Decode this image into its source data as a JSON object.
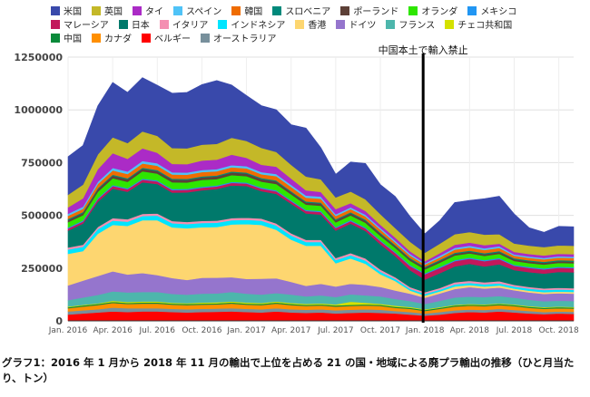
{
  "chart_data": {
    "type": "area",
    "stacked": true,
    "x": [
      "2016-01",
      "2016-02",
      "2016-03",
      "2016-04",
      "2016-05",
      "2016-06",
      "2016-07",
      "2016-08",
      "2016-09",
      "2016-10",
      "2016-11",
      "2016-12",
      "2017-01",
      "2017-02",
      "2017-03",
      "2017-04",
      "2017-05",
      "2017-06",
      "2017-07",
      "2017-08",
      "2017-09",
      "2017-10",
      "2017-11",
      "2017-12",
      "2018-01",
      "2018-02",
      "2018-03",
      "2018-04",
      "2018-05",
      "2018-06",
      "2018-07",
      "2018-08",
      "2018-09",
      "2018-10",
      "2018-11"
    ],
    "x_tick_labels": [
      "Jan. 2016",
      "Apr. 2016",
      "Jul. 2016",
      "Oct. 2016",
      "Jan. 2017",
      "Apr. 2017",
      "Jul. 2017",
      "Oct. 2017",
      "Jan. 2018",
      "Apr. 2018",
      "Jul. 2018",
      "Oct. 2018"
    ],
    "y_tick_labels": [
      "0",
      "250000",
      "500000",
      "750000",
      "1000000",
      "1250000"
    ],
    "ylim": [
      0,
      1250000
    ],
    "legend_position": "top",
    "annotation": {
      "x": "2018-01",
      "label": "中国本土で輸入禁止"
    },
    "series": [
      {
        "name": "ベルギー",
        "color": "#ff0000",
        "values": [
          30000,
          35000,
          40000,
          45000,
          42000,
          45000,
          45000,
          42000,
          40000,
          42000,
          43000,
          45000,
          42000,
          40000,
          45000,
          40000,
          38000,
          40000,
          35000,
          38000,
          40000,
          38000,
          35000,
          30000,
          25000,
          30000,
          38000,
          42000,
          40000,
          45000,
          40000,
          35000,
          32000,
          35000,
          33000
        ]
      },
      {
        "name": "オーストラリア",
        "color": "#78909c",
        "values": [
          15000,
          15000,
          15000,
          18000,
          18000,
          15000,
          15000,
          15000,
          15000,
          15000,
          15000,
          15000,
          15000,
          15000,
          15000,
          15000,
          15000,
          15000,
          15000,
          15000,
          15000,
          15000,
          12000,
          12000,
          10000,
          12000,
          12000,
          12000,
          12000,
          12000,
          12000,
          12000,
          10000,
          10000,
          10000
        ]
      },
      {
        "name": "カナダ",
        "color": "#ff8f00",
        "values": [
          15000,
          18000,
          20000,
          22000,
          20000,
          22000,
          22000,
          20000,
          20000,
          20000,
          20000,
          22000,
          20000,
          20000,
          22000,
          20000,
          18000,
          18000,
          18000,
          18000,
          18000,
          18000,
          15000,
          15000,
          12000,
          15000,
          18000,
          18000,
          18000,
          18000,
          18000,
          15000,
          15000,
          15000,
          15000
        ]
      },
      {
        "name": "中国",
        "color": "#0a8a3a",
        "values": [
          5000,
          5000,
          5000,
          5000,
          5000,
          5000,
          5000,
          5000,
          5000,
          5000,
          5000,
          5000,
          5000,
          5000,
          5000,
          5000,
          5000,
          5000,
          5000,
          5000,
          5000,
          5000,
          5000,
          5000,
          5000,
          5000,
          5000,
          5000,
          5000,
          5000,
          5000,
          5000,
          5000,
          5000,
          5000
        ]
      },
      {
        "name": "チェコ共和国",
        "color": "#d4e100",
        "values": [
          3000,
          3000,
          3000,
          5000,
          5000,
          5000,
          5000,
          4000,
          4000,
          5000,
          5000,
          5000,
          5000,
          5000,
          5000,
          5000,
          5000,
          5000,
          5000,
          15000,
          8000,
          5000,
          5000,
          4000,
          3000,
          3000,
          3000,
          3000,
          3000,
          3000,
          3000,
          3000,
          3000,
          3000,
          3000
        ]
      },
      {
        "name": "フランス",
        "color": "#4db6ac",
        "values": [
          30000,
          35000,
          40000,
          45000,
          45000,
          45000,
          45000,
          42000,
          40000,
          42000,
          42000,
          45000,
          42000,
          40000,
          40000,
          40000,
          35000,
          38000,
          35000,
          35000,
          35000,
          35000,
          32000,
          28000,
          25000,
          30000,
          35000,
          35000,
          35000,
          35000,
          32000,
          30000,
          28000,
          28000,
          28000
        ]
      },
      {
        "name": "ドイツ",
        "color": "#9575cd",
        "values": [
          70000,
          80000,
          90000,
          95000,
          85000,
          90000,
          80000,
          75000,
          70000,
          75000,
          75000,
          70000,
          70000,
          75000,
          70000,
          60000,
          50000,
          55000,
          50000,
          50000,
          50000,
          45000,
          40000,
          35000,
          30000,
          35000,
          40000,
          45000,
          40000,
          40000,
          35000,
          35000,
          35000,
          35000,
          35000
        ]
      },
      {
        "name": "香港",
        "color": "#fdd670",
        "values": [
          150000,
          140000,
          200000,
          220000,
          230000,
          250000,
          260000,
          240000,
          245000,
          240000,
          240000,
          250000,
          260000,
          255000,
          230000,
          200000,
          190000,
          180000,
          110000,
          120000,
          100000,
          60000,
          45000,
          15000,
          10000,
          10000,
          12000,
          10000,
          10000,
          10000,
          8000,
          8000,
          8000,
          8000,
          8000
        ]
      },
      {
        "name": "インドネシア",
        "color": "#00e5ff",
        "values": [
          20000,
          20000,
          22000,
          20000,
          20000,
          20000,
          22000,
          20000,
          20000,
          20000,
          20000,
          20000,
          20000,
          20000,
          20000,
          20000,
          18000,
          18000,
          15000,
          15000,
          15000,
          12000,
          10000,
          8000,
          8000,
          8000,
          10000,
          10000,
          10000,
          10000,
          10000,
          10000,
          10000,
          10000,
          10000
        ]
      },
      {
        "name": "イタリア",
        "color": "#f48fb1",
        "values": [
          10000,
          10000,
          10000,
          12000,
          12000,
          10000,
          10000,
          10000,
          10000,
          10000,
          10000,
          10000,
          10000,
          10000,
          10000,
          10000,
          10000,
          10000,
          10000,
          10000,
          10000,
          10000,
          8000,
          8000,
          8000,
          8000,
          10000,
          10000,
          10000,
          10000,
          8000,
          8000,
          8000,
          8000,
          8000
        ]
      },
      {
        "name": "日本",
        "color": "#00796b",
        "values": [
          80000,
          100000,
          120000,
          140000,
          130000,
          150000,
          140000,
          135000,
          140000,
          145000,
          150000,
          155000,
          150000,
          130000,
          140000,
          140000,
          125000,
          120000,
          130000,
          140000,
          130000,
          120000,
          100000,
          80000,
          60000,
          70000,
          75000,
          80000,
          75000,
          80000,
          70000,
          70000,
          70000,
          75000,
          75000
        ]
      },
      {
        "name": "マレーシア",
        "color": "#c2185b",
        "values": [
          10000,
          10000,
          12000,
          12000,
          12000,
          12000,
          12000,
          12000,
          12000,
          12000,
          12000,
          12000,
          12000,
          12000,
          12000,
          12000,
          12000,
          12000,
          12000,
          12000,
          12000,
          15000,
          15000,
          20000,
          25000,
          25000,
          25000,
          25000,
          25000,
          25000,
          20000,
          20000,
          20000,
          20000,
          20000
        ]
      },
      {
        "name": "メキシコ",
        "color": "#2196f3",
        "values": [
          5000,
          5000,
          5000,
          5000,
          5000,
          5000,
          5000,
          5000,
          5000,
          5000,
          5000,
          5000,
          5000,
          5000,
          5000,
          5000,
          5000,
          5000,
          5000,
          5000,
          5000,
          5000,
          5000,
          5000,
          5000,
          5000,
          5000,
          5000,
          5000,
          5000,
          5000,
          5000,
          5000,
          5000,
          5000
        ]
      },
      {
        "name": "オランダ",
        "color": "#2ee600",
        "values": [
          25000,
          25000,
          30000,
          32000,
          30000,
          35000,
          32000,
          32000,
          30000,
          32000,
          30000,
          32000,
          30000,
          28000,
          30000,
          28000,
          25000,
          25000,
          22000,
          22000,
          22000,
          20000,
          20000,
          20000,
          18000,
          20000,
          22000,
          20000,
          20000,
          20000,
          18000,
          18000,
          18000,
          18000,
          18000
        ]
      },
      {
        "name": "ポーランド",
        "color": "#5d4037",
        "values": [
          10000,
          10000,
          12000,
          12000,
          12000,
          12000,
          12000,
          12000,
          12000,
          12000,
          12000,
          12000,
          12000,
          12000,
          12000,
          10000,
          10000,
          10000,
          10000,
          10000,
          10000,
          10000,
          8000,
          8000,
          8000,
          8000,
          8000,
          8000,
          8000,
          8000,
          8000,
          8000,
          8000,
          8000,
          8000
        ]
      },
      {
        "name": "スロベニア",
        "color": "#00897b",
        "values": [
          5000,
          5000,
          5000,
          5000,
          5000,
          5000,
          5000,
          5000,
          5000,
          5000,
          5000,
          5000,
          5000,
          5000,
          5000,
          5000,
          5000,
          5000,
          5000,
          5000,
          5000,
          5000,
          5000,
          5000,
          5000,
          5000,
          5000,
          5000,
          5000,
          5000,
          5000,
          5000,
          5000,
          5000,
          5000
        ]
      },
      {
        "name": "韓国",
        "color": "#ef6c00",
        "values": [
          15000,
          15000,
          20000,
          20000,
          20000,
          20000,
          20000,
          20000,
          20000,
          20000,
          20000,
          20000,
          20000,
          18000,
          20000,
          20000,
          18000,
          18000,
          15000,
          15000,
          15000,
          15000,
          12000,
          12000,
          10000,
          12000,
          15000,
          15000,
          15000,
          15000,
          12000,
          12000,
          12000,
          12000,
          12000
        ]
      },
      {
        "name": "スペイン",
        "color": "#4fc3f7",
        "values": [
          10000,
          10000,
          10000,
          12000,
          12000,
          12000,
          12000,
          10000,
          10000,
          10000,
          10000,
          10000,
          10000,
          10000,
          10000,
          10000,
          10000,
          10000,
          8000,
          8000,
          8000,
          8000,
          8000,
          8000,
          6000,
          8000,
          8000,
          8000,
          8000,
          8000,
          6000,
          6000,
          6000,
          6000,
          6000
        ]
      },
      {
        "name": "タイ",
        "color": "#ab2bc6",
        "values": [
          30000,
          40000,
          60000,
          70000,
          60000,
          60000,
          50000,
          40000,
          40000,
          45000,
          45000,
          50000,
          40000,
          35000,
          35000,
          30000,
          25000,
          22000,
          25000,
          20000,
          18000,
          15000,
          15000,
          12000,
          10000,
          12000,
          15000,
          15000,
          15000,
          12000,
          12000,
          12000,
          12000,
          12000,
          12000
        ]
      },
      {
        "name": "英国",
        "color": "#c4b828",
        "values": [
          60000,
          65000,
          70000,
          75000,
          75000,
          80000,
          80000,
          75000,
          75000,
          75000,
          75000,
          80000,
          80000,
          80000,
          70000,
          65000,
          65000,
          60000,
          55000,
          55000,
          55000,
          50000,
          45000,
          45000,
          40000,
          45000,
          50000,
          50000,
          50000,
          45000,
          40000,
          40000,
          40000,
          40000,
          40000
        ]
      },
      {
        "name": "米国",
        "color": "#3949ab",
        "values": [
          180000,
          185000,
          230000,
          260000,
          240000,
          255000,
          240000,
          260000,
          265000,
          285000,
          300000,
          250000,
          215000,
          200000,
          200000,
          190000,
          230000,
          150000,
          110000,
          140000,
          170000,
          140000,
          150000,
          120000,
          90000,
          110000,
          150000,
          150000,
          170000,
          180000,
          140000,
          85000,
          70000,
          90000,
          90000
        ]
      }
    ]
  },
  "legend_order": [
    "米国",
    "英国",
    "タイ",
    "スペイン",
    "韓国",
    "スロベニア",
    "ポーランド",
    "オランダ",
    "メキシコ",
    "マレーシア",
    "日本",
    "イタリア",
    "インドネシア",
    "香港",
    "ドイツ",
    "フランス",
    "チェコ共和国",
    "中国",
    "カナダ",
    "ベルギー",
    "オーストラリア"
  ],
  "caption": "グラフ1：2016 年 1 月から 2018 年 11 月の輸出で上位を占める 21 の国・地域による廃プラ輸出の推移（ひと月当たり、トン）"
}
